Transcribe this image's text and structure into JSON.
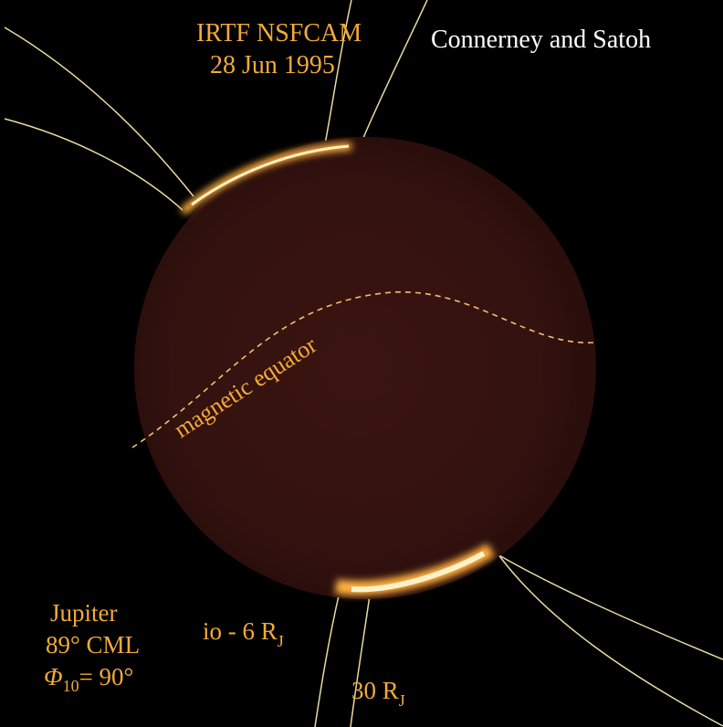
{
  "header": {
    "instrument": "IRTF NSFCAM",
    "date": "28 Jun 1995",
    "credit": "Connerney and Satoh"
  },
  "annotation": {
    "equator": "magnetic equator"
  },
  "info": {
    "planet": "Jupiter",
    "cml": "89° CML",
    "phi_symbol": "Φ",
    "phi_subscript": "10",
    "phi_value": "= 90°"
  },
  "field_lines": {
    "io_label": "io - 6 R",
    "io_subscript": "J",
    "outer_label": "30 R",
    "outer_subscript": "J"
  }
}
